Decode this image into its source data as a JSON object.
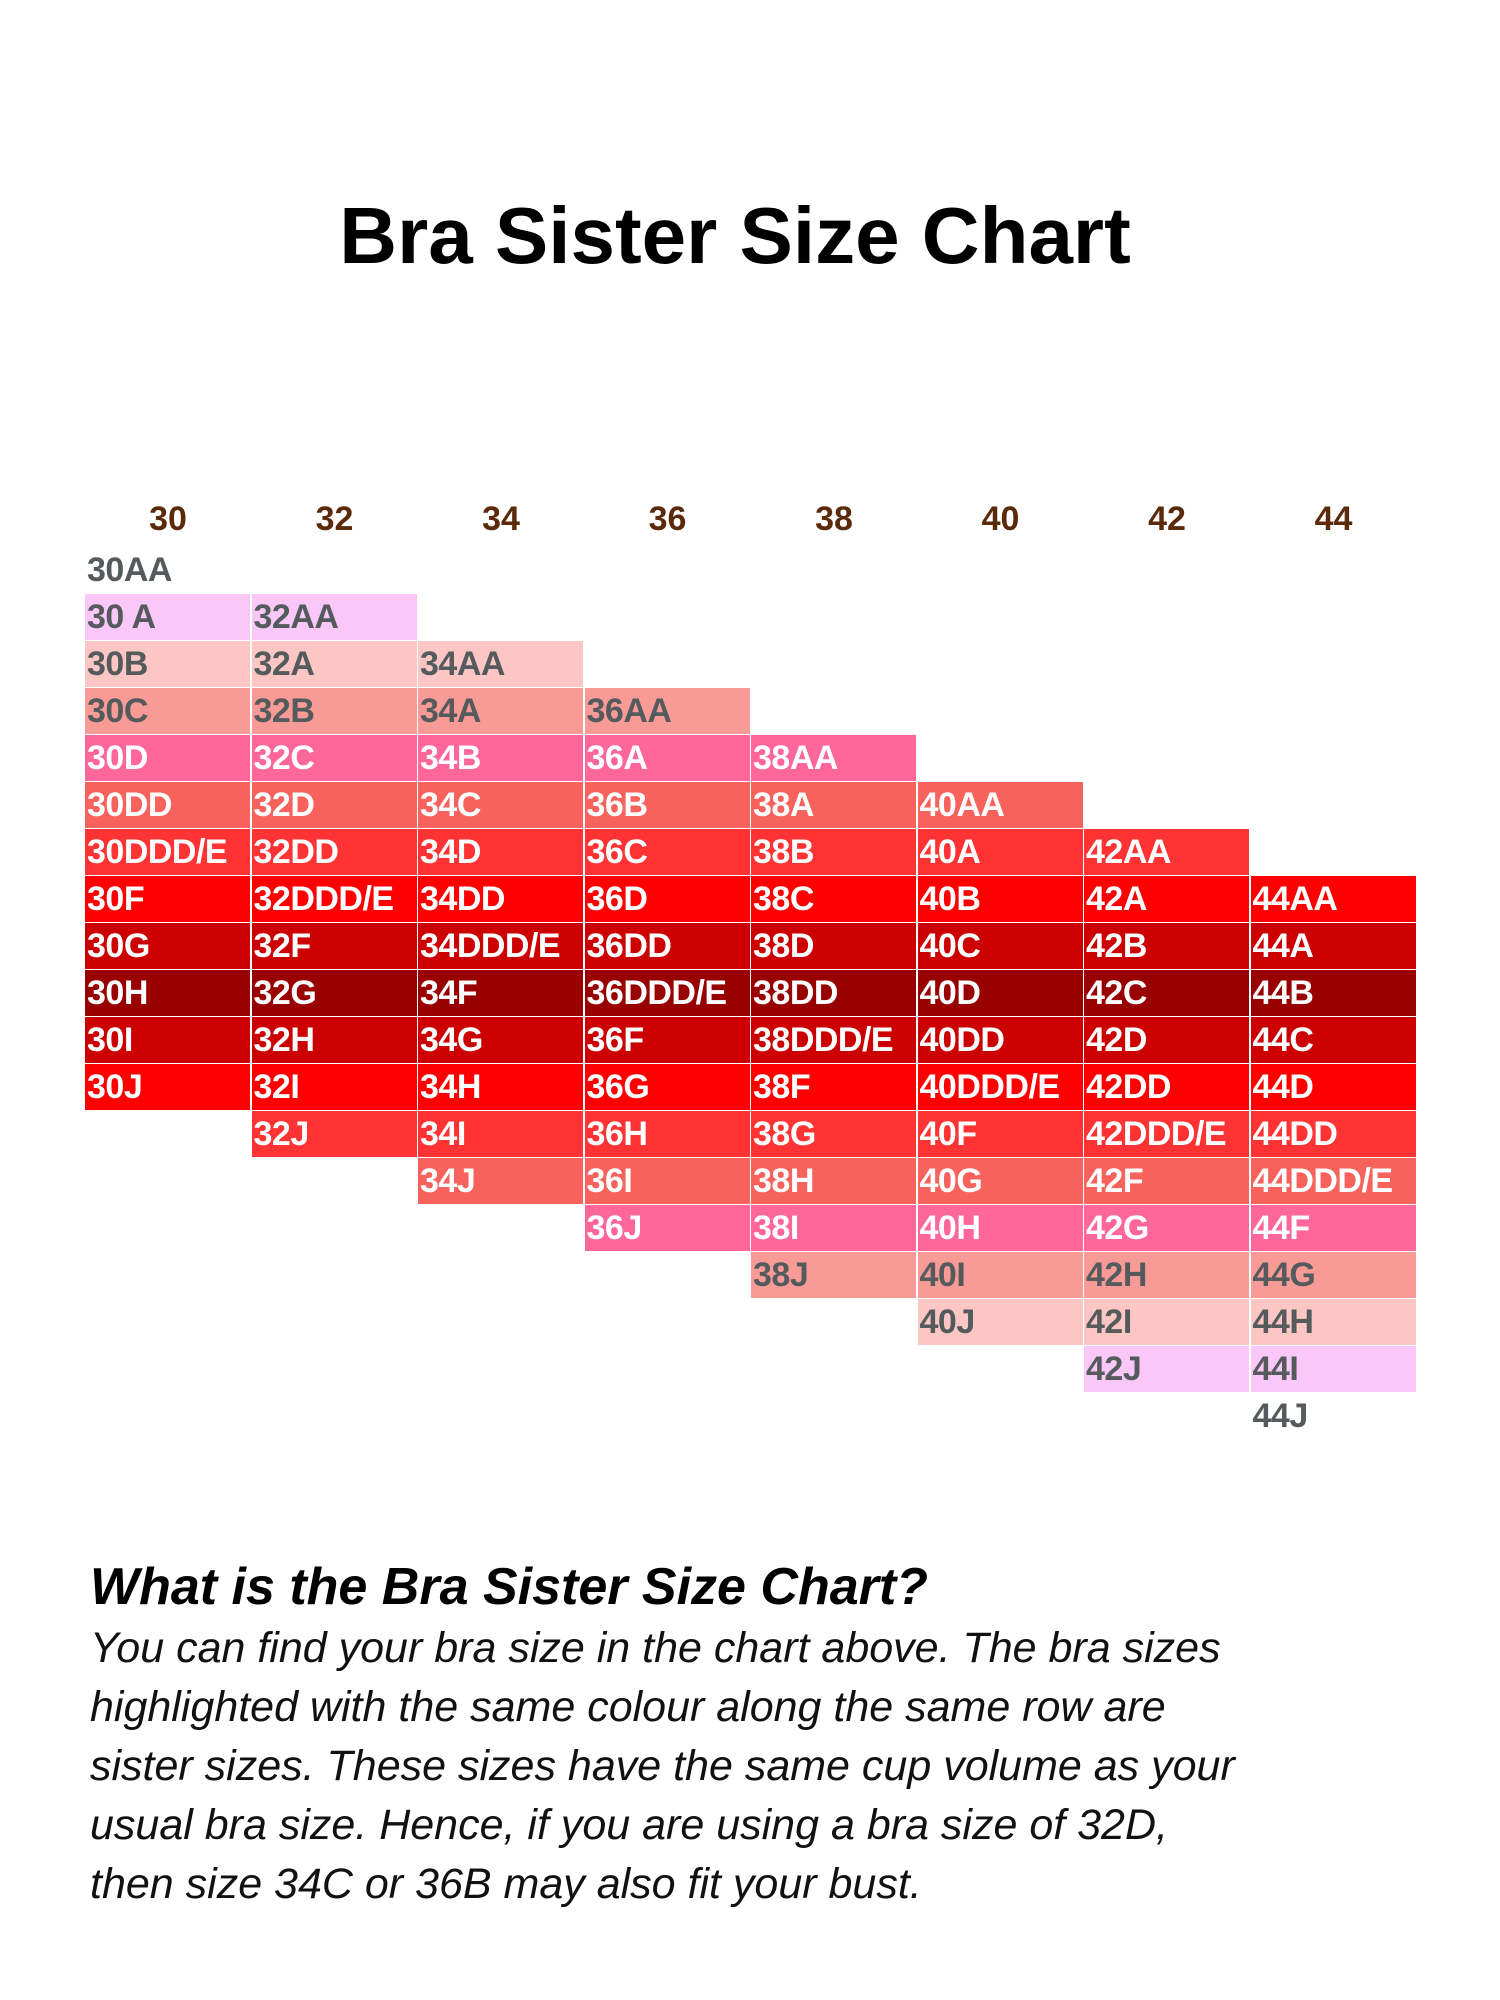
{
  "chart_data": {
    "type": "table",
    "title": "Bra Sister Size Chart",
    "band_sizes": [
      "30",
      "32",
      "34",
      "36",
      "38",
      "40",
      "42",
      "44"
    ],
    "columns": [
      {
        "band": "30",
        "sizes": [
          "30AA",
          "30 A",
          "30B",
          "30C",
          "30D",
          "30DD",
          "30DDD/E",
          "30F",
          "30G",
          "30H",
          "30I",
          "30J"
        ]
      },
      {
        "band": "32",
        "sizes": [
          "32AA",
          "32A",
          "32B",
          "32C",
          "32D",
          "32DD",
          "32DDD/E",
          "32F",
          "32G",
          "32H",
          "32I",
          "32J"
        ]
      },
      {
        "band": "34",
        "sizes": [
          "34AA",
          "34A",
          "34B",
          "34C",
          "34D",
          "34DD",
          "34DDD/E",
          "34F",
          "34G",
          "34H",
          "34I",
          "34J"
        ]
      },
      {
        "band": "36",
        "sizes": [
          "36AA",
          "36A",
          "36B",
          "36C",
          "36D",
          "36DD",
          "36DDD/E",
          "36F",
          "36G",
          "36H",
          "36I",
          "36J"
        ]
      },
      {
        "band": "38",
        "sizes": [
          "38AA",
          "38A",
          "38B",
          "38C",
          "38D",
          "38DD",
          "38DDD/E",
          "38F",
          "38G",
          "38H",
          "38I",
          "38J"
        ]
      },
      {
        "band": "40",
        "sizes": [
          "40AA",
          "40A",
          "40B",
          "40C",
          "40D",
          "40DD",
          "40DDD/E",
          "40F",
          "40G",
          "40H",
          "40I",
          "40J"
        ]
      },
      {
        "band": "42",
        "sizes": [
          "42AA",
          "42A",
          "42B",
          "42C",
          "42D",
          "42DD",
          "42DDD/E",
          "42F",
          "42G",
          "42H",
          "42I",
          "42J"
        ]
      },
      {
        "band": "44",
        "sizes": [
          "44AA",
          "44A",
          "44B",
          "44C",
          "44D",
          "44DD",
          "44DDD/E",
          "44F",
          "44G",
          "44H",
          "44I",
          "44J"
        ]
      }
    ],
    "sister_row_colors": [
      "#ffffff",
      "#f9c8f9",
      "#fbc6c4",
      "#f89a96",
      "#ff6699",
      "#f8625c",
      "#ff3333",
      "#ff0000",
      "#cc0000",
      "#990000",
      "#cc0000",
      "#ff0000",
      "#ff3333",
      "#f8625c",
      "#ff6699",
      "#f89a96",
      "#fbc6c4",
      "#f9c8f9",
      "#ffffff"
    ],
    "light_text_color": "#555a5c",
    "dark_text_color": "#ffffff",
    "header_color": "#5a2a0a"
  },
  "explanation": {
    "heading": "What is the Bra Sister Size Chart?",
    "lines": [
      "You can find your bra size in the chart above. The bra sizes",
      "highlighted with the same colour along the same row are",
      "sister sizes. These sizes have the same cup volume as your",
      "usual bra size. Hence, if you are using a bra size of 32D,",
      "then size 34C or 36B may also fit your bust."
    ]
  }
}
